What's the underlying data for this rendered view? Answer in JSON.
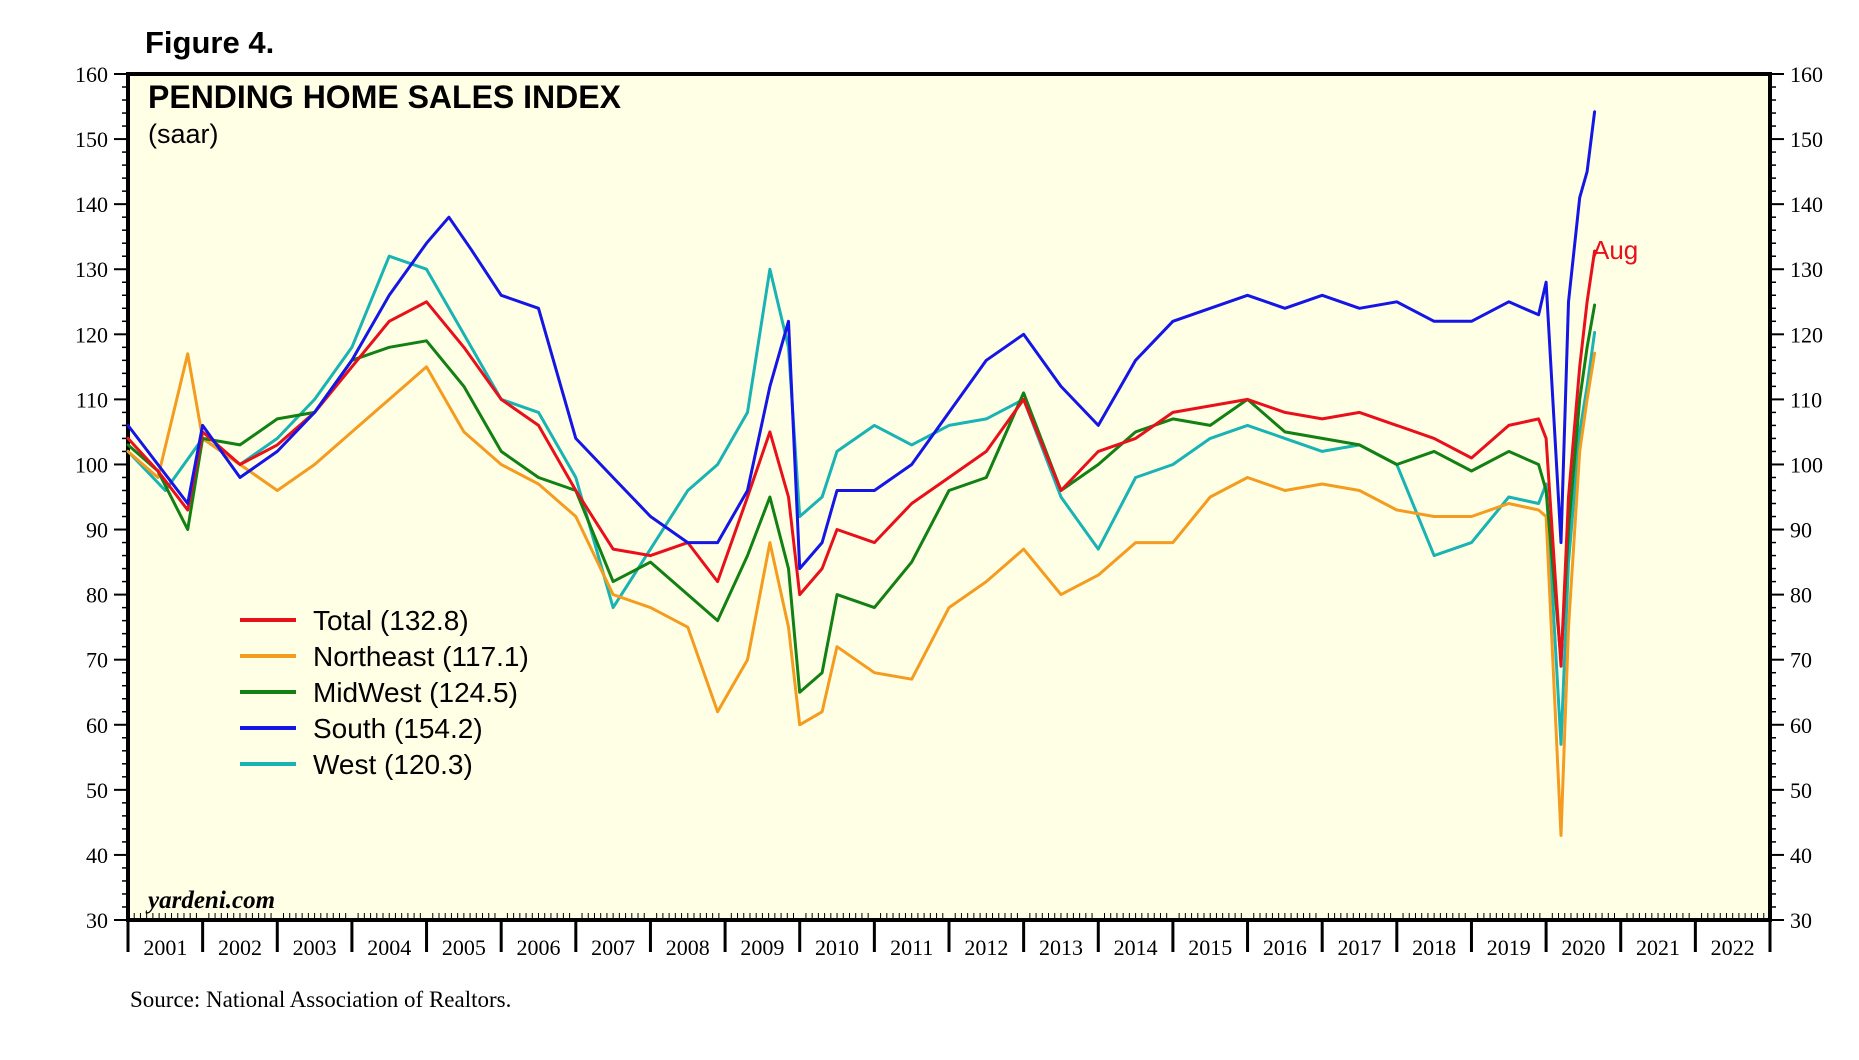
{
  "figure_label": "Figure 4.",
  "source_note": "Source: National Association of Realtors.",
  "brand": "yardeni.com",
  "chart_data": {
    "type": "line",
    "title": "PENDING HOME SALES INDEX",
    "subtitle": "(saar)",
    "annotation": {
      "text": "Aug",
      "color": "#e8101b"
    },
    "ylim": [
      30,
      160
    ],
    "y_ticks": [
      30,
      40,
      50,
      60,
      70,
      80,
      90,
      100,
      110,
      120,
      130,
      140,
      150,
      160
    ],
    "y_tick_labels": [
      "30",
      "40",
      "50",
      "60",
      "70",
      "80",
      "90",
      "100",
      "110",
      "120",
      "130",
      "140",
      "150",
      "160"
    ],
    "xlim": [
      2001,
      2023
    ],
    "x_labels": [
      "2001",
      "2002",
      "2003",
      "2004",
      "2005",
      "2006",
      "2007",
      "2008",
      "2009",
      "2010",
      "2011",
      "2012",
      "2013",
      "2014",
      "2015",
      "2016",
      "2017",
      "2018",
      "2019",
      "2020",
      "2021",
      "2022"
    ],
    "x_units": "decimal year",
    "series": [
      {
        "name": "West",
        "legend": "West (120.3)",
        "color": "#1ab3b3",
        "last": 120.3,
        "x": [
          2001.0,
          2001.5,
          2002.0,
          2002.5,
          2003.0,
          2003.5,
          2004.0,
          2004.5,
          2005.0,
          2005.5,
          2006.0,
          2006.5,
          2007.0,
          2007.5,
          2008.0,
          2008.5,
          2008.9,
          2009.3,
          2009.6,
          2009.85,
          2010.0,
          2010.3,
          2010.5,
          2011.0,
          2011.5,
          2012.0,
          2012.5,
          2013.0,
          2013.5,
          2014.0,
          2014.5,
          2015.0,
          2015.5,
          2016.0,
          2016.5,
          2017.0,
          2017.5,
          2018.0,
          2018.5,
          2019.0,
          2019.5,
          2019.9,
          2020.0,
          2020.2,
          2020.3,
          2020.45,
          2020.55,
          2020.65
        ],
        "y": [
          102,
          96,
          104,
          100,
          104,
          110,
          118,
          132,
          130,
          120,
          110,
          108,
          98,
          78,
          87,
          96,
          100,
          108,
          130,
          118,
          92,
          95,
          102,
          106,
          103,
          106,
          107,
          110,
          95,
          87,
          98,
          100,
          104,
          106,
          104,
          102,
          103,
          100,
          86,
          88,
          95,
          94,
          97,
          57,
          85,
          105,
          112,
          120.3
        ]
      },
      {
        "name": "Northeast",
        "legend": "Northeast (117.1)",
        "color": "#f39c1f",
        "last": 117.1,
        "x": [
          2001.0,
          2001.4,
          2001.8,
          2002.0,
          2002.5,
          2003.0,
          2003.5,
          2004.0,
          2004.5,
          2005.0,
          2005.5,
          2006.0,
          2006.5,
          2007.0,
          2007.5,
          2008.0,
          2008.5,
          2008.9,
          2009.3,
          2009.6,
          2009.85,
          2010.0,
          2010.3,
          2010.5,
          2011.0,
          2011.5,
          2012.0,
          2012.5,
          2013.0,
          2013.5,
          2014.0,
          2014.5,
          2015.0,
          2015.5,
          2016.0,
          2016.5,
          2017.0,
          2017.5,
          2018.0,
          2018.5,
          2019.0,
          2019.5,
          2019.9,
          2020.0,
          2020.2,
          2020.3,
          2020.45,
          2020.55,
          2020.65
        ],
        "y": [
          102,
          98,
          117,
          104,
          100,
          96,
          100,
          105,
          110,
          115,
          105,
          100,
          97,
          92,
          80,
          78,
          75,
          62,
          70,
          88,
          75,
          60,
          62,
          72,
          68,
          67,
          78,
          82,
          87,
          80,
          83,
          88,
          88,
          95,
          98,
          96,
          97,
          96,
          93,
          92,
          92,
          94,
          93,
          92,
          43,
          75,
          102,
          110,
          117.1
        ]
      },
      {
        "name": "MidWest",
        "legend": "MidWest (124.5)",
        "color": "#138013",
        "last": 124.5,
        "x": [
          2001.0,
          2001.4,
          2001.8,
          2002.0,
          2002.5,
          2003.0,
          2003.5,
          2004.0,
          2004.5,
          2005.0,
          2005.5,
          2006.0,
          2006.5,
          2007.0,
          2007.5,
          2008.0,
          2008.5,
          2008.9,
          2009.3,
          2009.6,
          2009.85,
          2010.0,
          2010.3,
          2010.5,
          2011.0,
          2011.5,
          2012.0,
          2012.5,
          2013.0,
          2013.5,
          2014.0,
          2014.5,
          2015.0,
          2015.5,
          2016.0,
          2016.5,
          2017.0,
          2017.5,
          2018.0,
          2018.5,
          2019.0,
          2019.5,
          2019.9,
          2020.0,
          2020.2,
          2020.3,
          2020.45,
          2020.55,
          2020.65
        ],
        "y": [
          103,
          99,
          90,
          104,
          103,
          107,
          108,
          116,
          118,
          119,
          112,
          102,
          98,
          96,
          82,
          85,
          80,
          76,
          86,
          95,
          84,
          65,
          68,
          80,
          78,
          85,
          96,
          98,
          111,
          96,
          100,
          105,
          107,
          106,
          110,
          105,
          104,
          103,
          100,
          102,
          99,
          102,
          100,
          96,
          70,
          90,
          110,
          118,
          124.5
        ]
      },
      {
        "name": "Total",
        "legend": "Total (132.8)",
        "color": "#e8101b",
        "last": 132.8,
        "x": [
          2001.0,
          2001.4,
          2001.8,
          2002.0,
          2002.5,
          2003.0,
          2003.5,
          2004.0,
          2004.5,
          2005.0,
          2005.5,
          2006.0,
          2006.5,
          2007.0,
          2007.5,
          2008.0,
          2008.5,
          2008.9,
          2009.3,
          2009.6,
          2009.85,
          2010.0,
          2010.3,
          2010.5,
          2011.0,
          2011.5,
          2012.0,
          2012.5,
          2013.0,
          2013.5,
          2014.0,
          2014.5,
          2015.0,
          2015.5,
          2016.0,
          2016.5,
          2017.0,
          2017.5,
          2018.0,
          2018.5,
          2019.0,
          2019.5,
          2019.9,
          2020.0,
          2020.2,
          2020.3,
          2020.45,
          2020.55,
          2020.65
        ],
        "y": [
          104,
          99,
          93,
          105,
          100,
          103,
          108,
          115,
          122,
          125,
          118,
          110,
          106,
          96,
          87,
          86,
          88,
          82,
          95,
          105,
          95,
          80,
          84,
          90,
          88,
          94,
          98,
          102,
          110,
          96,
          102,
          104,
          108,
          109,
          110,
          108,
          107,
          108,
          106,
          104,
          101,
          106,
          107,
          104,
          69,
          95,
          115,
          125,
          132.8
        ]
      },
      {
        "name": "South",
        "legend": "South (154.2)",
        "color": "#1515e6",
        "last": 154.2,
        "x": [
          2001.0,
          2001.4,
          2001.8,
          2002.0,
          2002.5,
          2003.0,
          2003.5,
          2004.0,
          2004.5,
          2005.0,
          2005.3,
          2005.6,
          2006.0,
          2006.5,
          2007.0,
          2007.5,
          2008.0,
          2008.5,
          2008.9,
          2009.3,
          2009.6,
          2009.85,
          2010.0,
          2010.3,
          2010.5,
          2011.0,
          2011.5,
          2012.0,
          2012.5,
          2013.0,
          2013.5,
          2014.0,
          2014.5,
          2015.0,
          2015.5,
          2016.0,
          2016.5,
          2017.0,
          2017.5,
          2018.0,
          2018.5,
          2019.0,
          2019.5,
          2019.9,
          2020.0,
          2020.2,
          2020.3,
          2020.45,
          2020.55,
          2020.65
        ],
        "y": [
          106,
          100,
          94,
          106,
          98,
          102,
          108,
          116,
          126,
          134,
          138,
          133,
          126,
          124,
          104,
          98,
          92,
          88,
          88,
          96,
          112,
          122,
          84,
          88,
          96,
          96,
          100,
          108,
          116,
          120,
          112,
          106,
          116,
          122,
          124,
          126,
          124,
          126,
          124,
          125,
          122,
          122,
          125,
          123,
          128,
          88,
          125,
          141,
          145,
          154.2
        ]
      }
    ],
    "legend_order": [
      "Total",
      "Northeast",
      "MidWest",
      "South",
      "West"
    ]
  }
}
